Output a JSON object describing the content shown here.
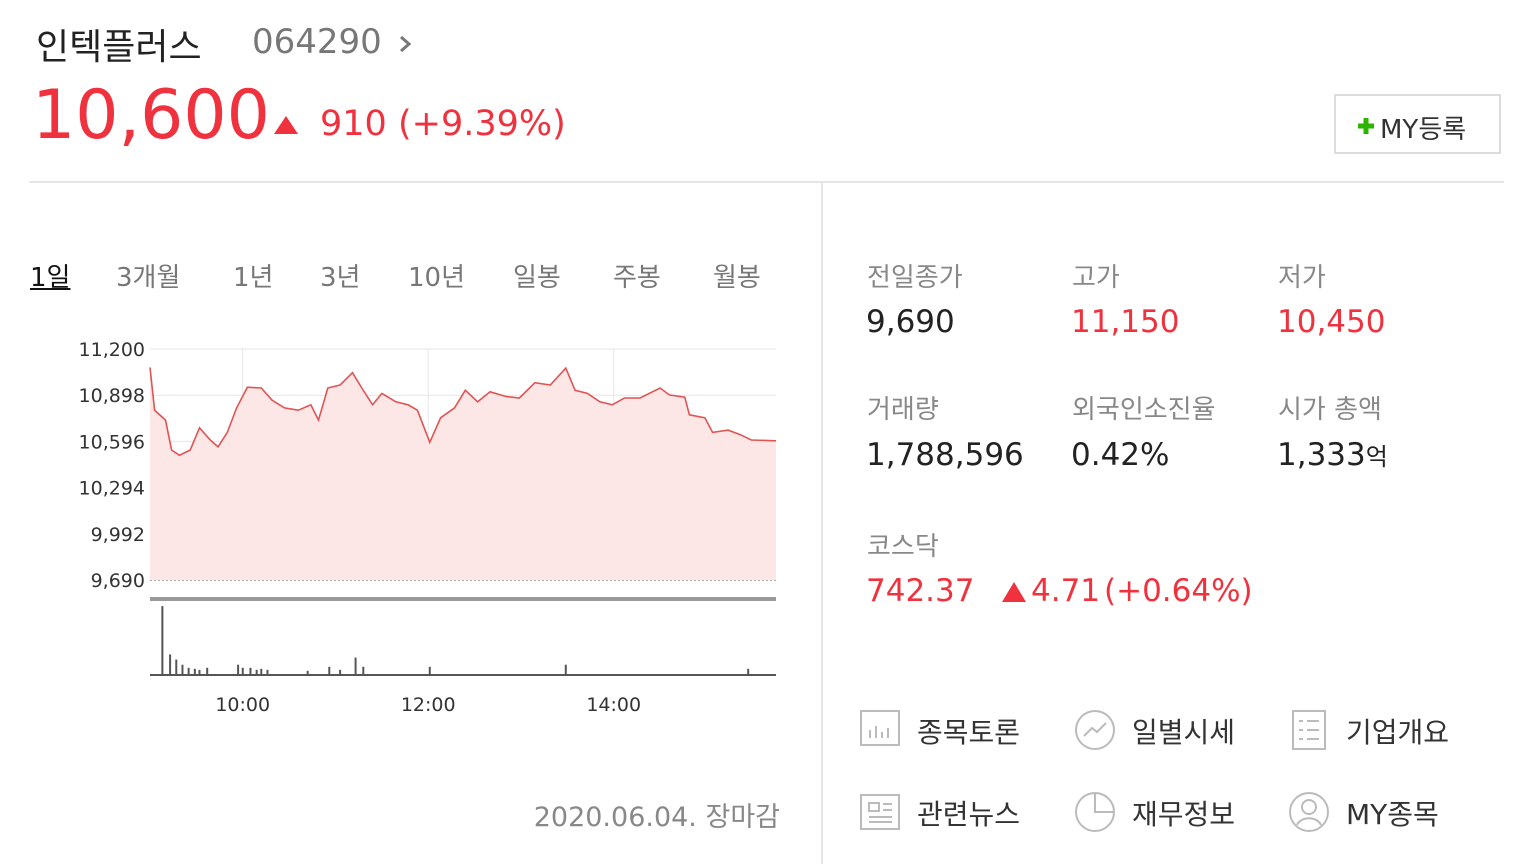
{
  "header": {
    "name": "인텍플러스",
    "code": "064290",
    "price": "10,600",
    "change": "910",
    "change_pct": "(+9.39%)",
    "my_button": "MY등록"
  },
  "tabs": [
    "1일",
    "3개월",
    "1년",
    "3년",
    "10년",
    "일봉",
    "주봉",
    "월봉"
  ],
  "chart_data": {
    "type": "line",
    "color": "#e05454",
    "fill": "#fde6e6",
    "x": [
      540,
      543,
      550,
      554,
      559,
      566,
      572,
      579,
      584,
      590,
      596,
      603,
      612,
      619,
      627,
      636,
      644,
      649,
      655,
      663,
      671,
      677,
      684,
      690,
      699,
      707,
      713,
      721,
      728,
      737,
      744,
      752,
      760,
      770,
      779,
      789,
      799,
      809,
      815,
      823,
      831,
      839,
      847,
      857,
      870,
      876,
      886,
      889,
      899,
      904,
      914,
      922,
      929,
      945
    ],
    "values": [
      11080,
      10800,
      10735,
      10540,
      10505,
      10540,
      10685,
      10605,
      10560,
      10655,
      10815,
      10950,
      10945,
      10865,
      10815,
      10800,
      10835,
      10735,
      10945,
      10965,
      11045,
      10945,
      10835,
      10910,
      10855,
      10835,
      10800,
      10590,
      10750,
      10815,
      10930,
      10855,
      10920,
      10890,
      10880,
      10980,
      10965,
      11075,
      10930,
      10910,
      10855,
      10835,
      10880,
      10880,
      10945,
      10900,
      10885,
      10770,
      10750,
      10655,
      10670,
      10640,
      10605,
      10600
    ],
    "xlim": [
      540,
      945
    ],
    "xticks": [
      {
        "value": 600,
        "label": "10:00"
      },
      {
        "value": 720,
        "label": "12:00"
      },
      {
        "value": 840,
        "label": "14:00"
      }
    ],
    "ylim": [
      9690,
      11200
    ],
    "yticks": [
      {
        "value": 9690,
        "label": "9,690"
      },
      {
        "value": 9992,
        "label": "9,992"
      },
      {
        "value": 10294,
        "label": "10,294"
      },
      {
        "value": 10596,
        "label": "10,596"
      },
      {
        "value": 10898,
        "label": "10,898"
      },
      {
        "value": 11200,
        "label": "11,200"
      }
    ],
    "grid": true,
    "volume": {
      "color": "#555555",
      "x": [
        548,
        553,
        557,
        561,
        565,
        569,
        572,
        577,
        597,
        600,
        605,
        609,
        612,
        616,
        642,
        656,
        663,
        673,
        678,
        721,
        809,
        927
      ],
      "values": [
        67000,
        20000,
        15000,
        10000,
        7000,
        6000,
        5000,
        7000,
        10000,
        7000,
        7000,
        5000,
        6000,
        5000,
        4000,
        8000,
        5000,
        17000,
        8000,
        8000,
        10000,
        6000
      ],
      "ylim": [
        0,
        70000
      ]
    }
  },
  "stats": [
    {
      "label": "전일종가",
      "value": "9,690",
      "color": "#222222"
    },
    {
      "label": "고가",
      "value": "11,150",
      "color": "#f0313e"
    },
    {
      "label": "저가",
      "value": "10,450",
      "color": "#f0313e"
    },
    {
      "label": "거래량",
      "value": "1,788,596",
      "color": "#222222"
    },
    {
      "label": "외국인소진율",
      "value": "0.42%",
      "color": "#222222"
    },
    {
      "label": "시가 총액",
      "value": "1,333",
      "unit": "억",
      "color": "#222222"
    }
  ],
  "index": {
    "name": "코스닥",
    "value": "742.37",
    "change": "4.71",
    "change_pct": "(+0.64%)"
  },
  "links": [
    "종목토론",
    "일별시세",
    "기업개요",
    "관련뉴스",
    "재무정보",
    "MY종목"
  ],
  "footer": "2020.06.04. 장마감"
}
